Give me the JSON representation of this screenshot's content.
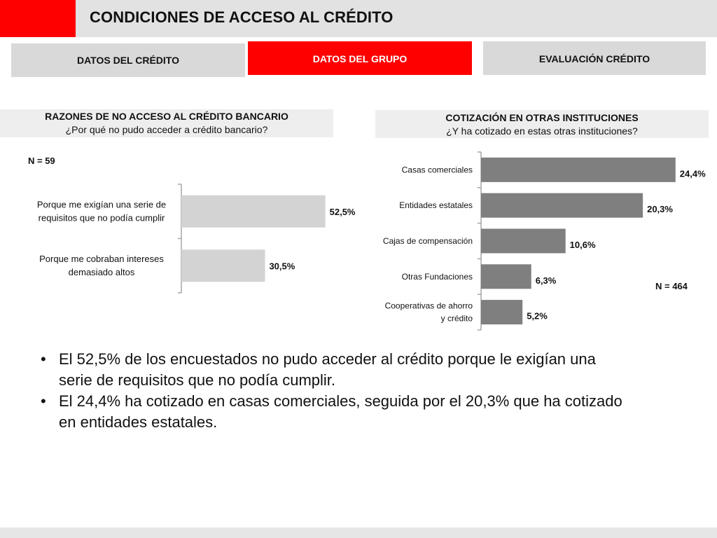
{
  "header": {
    "title": "CONDICIONES DE ACCESO AL CRÉDITO",
    "accent_color": "#ff0000"
  },
  "tabs": [
    {
      "label": "DATOS DEL CRÉDITO",
      "active": false
    },
    {
      "label": "DATOS DEL GRUPO",
      "active": true
    },
    {
      "label": "EVALUACIÓN CRÉDITO",
      "active": false
    }
  ],
  "left_panel": {
    "title": "RAZONES DE NO ACCESO AL CRÉDITO BANCARIO",
    "subtitle": "¿Por qué no pudo acceder a crédito bancario?",
    "n_label": "N = 59"
  },
  "right_panel": {
    "title": "COTIZACIÓN EN OTRAS INSTITUCIONES",
    "subtitle": "¿Y ha cotizado en estas otras instituciones?",
    "n_label": "N = 464"
  },
  "chart_data": [
    {
      "type": "bar",
      "orientation": "horizontal",
      "categories": [
        [
          "Porque me exigían una serie de",
          "requisitos que no podía cumplir"
        ],
        [
          "Porque me cobraban intereses",
          "demasiado altos"
        ]
      ],
      "values": [
        52.5,
        30.5
      ],
      "data_labels": [
        "52,5%",
        "30,5%"
      ],
      "xlim": [
        0,
        60
      ],
      "bar_color": "#d3d3d3",
      "grid": false
    },
    {
      "type": "bar",
      "orientation": "horizontal",
      "categories": [
        [
          "Casas comerciales"
        ],
        [
          "Entidades estatales"
        ],
        [
          "Cajas de compensación"
        ],
        [
          "Otras Fundaciones"
        ],
        [
          "Cooperativas de ahorro",
          "y crédito"
        ]
      ],
      "values": [
        24.4,
        20.3,
        10.6,
        6.3,
        5.2
      ],
      "data_labels": [
        "24,4%",
        "20,3%",
        "10,6%",
        "6,3%",
        "5,2%"
      ],
      "xlim": [
        0,
        26
      ],
      "bar_color": "#7f7f7f",
      "grid": false
    }
  ],
  "bullets": [
    {
      "marker": "•",
      "lines": [
        "El 52,5% de los encuestados no pudo acceder al crédito porque le exigían una",
        "serie de requisitos que no podía cumplir."
      ]
    },
    {
      "marker": "•",
      "lines": [
        "El 24,4% ha cotizado en casas comerciales, seguida por el 20,3% que ha cotizado",
        "en entidades estatales."
      ]
    }
  ]
}
